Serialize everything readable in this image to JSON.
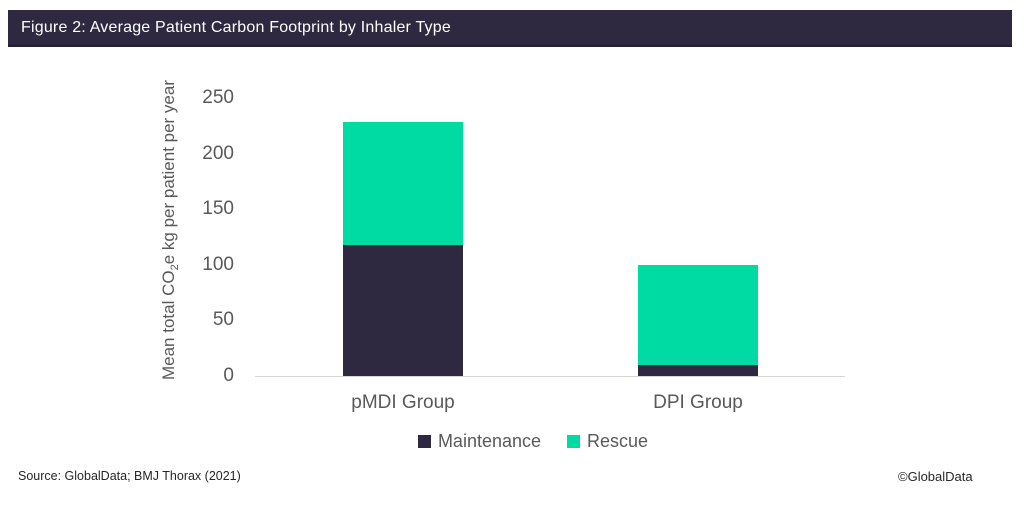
{
  "header": {
    "title": "Figure 2: Average Patient Carbon Footprint by Inhaler Type"
  },
  "chart_data": {
    "type": "bar",
    "stacked": true,
    "categories": [
      "pMDI Group",
      "DPI Group"
    ],
    "series": [
      {
        "name": "Maintenance",
        "color": "#2E2940",
        "values": [
          118,
          10
        ]
      },
      {
        "name": "Rescue",
        "color": "#00DBA4",
        "values": [
          110,
          90
        ]
      }
    ],
    "ylabel": "Mean total CO₂e kg per patient per year",
    "ylabel_parts": {
      "pre": "Mean total CO",
      "sub": "2",
      "post": "e kg per patient per year"
    },
    "xlabel": "",
    "ylim": [
      0,
      250
    ],
    "yticks": [
      0,
      50,
      100,
      150,
      200,
      250
    ],
    "grid": false,
    "legend_position": "bottom"
  },
  "footer": {
    "source": "Source: GlobalData; BMJ Thorax (2021)",
    "copyright": "©GlobalData"
  },
  "colors": {
    "header_bg": "#2E2940",
    "maintenance": "#2E2940",
    "rescue": "#00DBA4",
    "axis_line": "#D6D6D6",
    "chart_text": "#595959"
  }
}
